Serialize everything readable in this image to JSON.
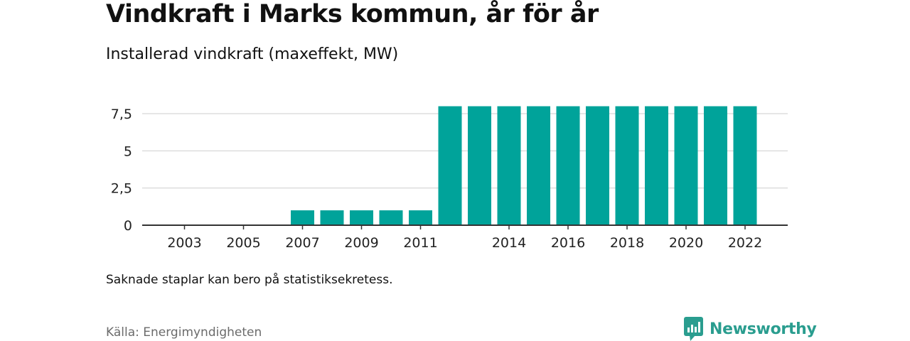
{
  "title": "Vindkraft i Marks kommun, år för år",
  "subtitle": "Installerad vindkraft (maxeffekt, MW)",
  "note": "Saknade staplar kan bero på statistiksekretess.",
  "source": "Källa: Energimyndigheten",
  "brand": {
    "name": "Newsworthy",
    "icon": "newsworthy-logo-icon",
    "color": "#2a9d8f"
  },
  "chart_data": {
    "type": "bar",
    "title": "",
    "xlabel": "",
    "ylabel": "",
    "categories": [
      "2003",
      "2004",
      "2005",
      "2006",
      "2007",
      "2008",
      "2009",
      "2010",
      "2011",
      "2012",
      "2013",
      "2014",
      "2015",
      "2016",
      "2017",
      "2018",
      "2019",
      "2020",
      "2021",
      "2022"
    ],
    "values": [
      0,
      0,
      0,
      0,
      1,
      1,
      1,
      1,
      1,
      8,
      8,
      8,
      8,
      8,
      8,
      8,
      8,
      8,
      8,
      8
    ],
    "ylim": [
      0,
      8
    ],
    "yticks": [
      0,
      2.5,
      5,
      7.5
    ],
    "ytick_labels": [
      "0",
      "2,5",
      "5",
      "7,5"
    ],
    "xtick_labels": [
      "2003",
      "2005",
      "2007",
      "2009",
      "2011",
      "2014",
      "2016",
      "2018",
      "2020",
      "2022"
    ],
    "bar_color": "#00a39a",
    "grid": true,
    "legend": "none"
  }
}
